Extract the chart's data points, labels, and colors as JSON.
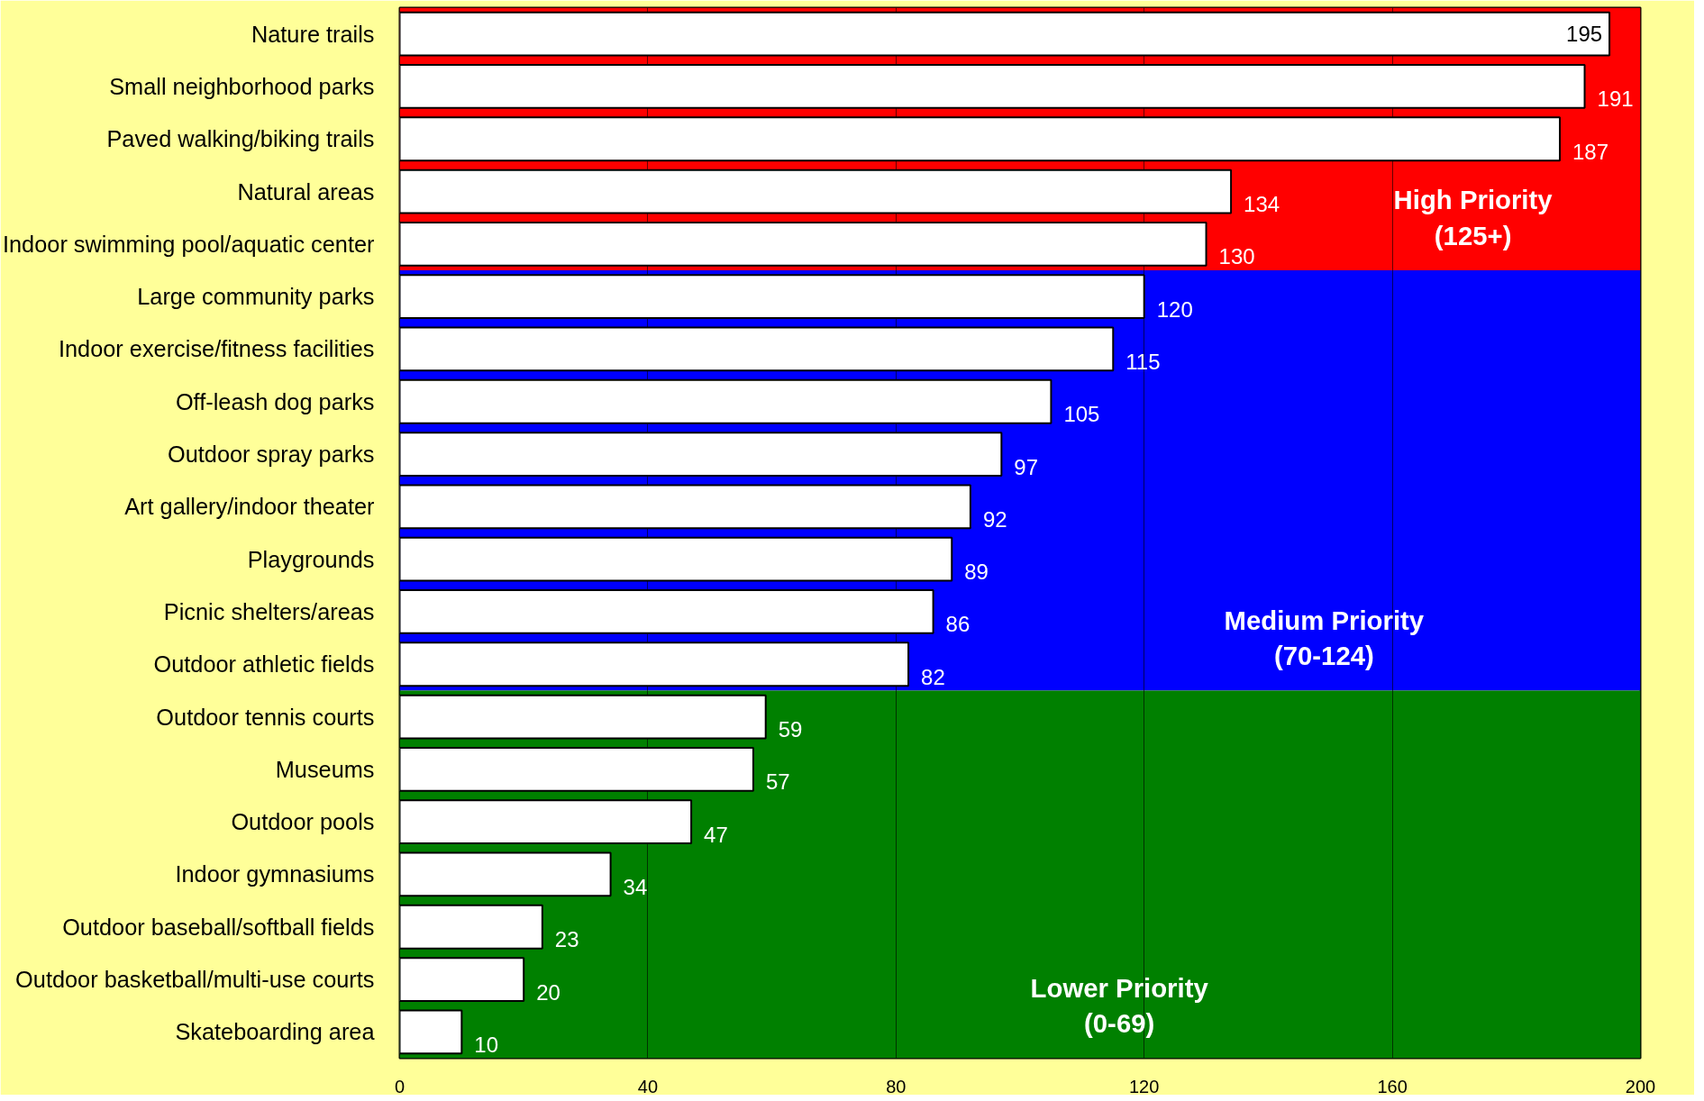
{
  "chart_data": {
    "type": "bar",
    "orientation": "horizontal",
    "categories": [
      "Nature trails",
      "Small neighborhood parks",
      "Paved walking/biking trails",
      "Natural areas",
      "Indoor swimming pool/aquatic center",
      "Large community parks",
      "Indoor exercise/fitness facilities",
      "Off-leash dog parks",
      "Outdoor spray parks",
      "Art gallery/indoor theater",
      "Playgrounds",
      "Picnic shelters/areas",
      "Outdoor athletic fields",
      "Outdoor tennis courts",
      "Museums",
      "Outdoor pools",
      "Indoor gymnasiums",
      "Outdoor baseball/softball fields",
      "Outdoor basketball/multi-use courts",
      "Skateboarding area"
    ],
    "values": [
      195,
      191,
      187,
      134,
      130,
      120,
      115,
      105,
      97,
      92,
      89,
      86,
      82,
      59,
      57,
      47,
      34,
      23,
      20,
      10
    ],
    "color": "#ffffff",
    "xlim": [
      0,
      200
    ],
    "xticks": [
      0,
      40,
      80,
      120,
      160,
      200
    ],
    "grid": "x",
    "data_labels": true,
    "bands": [
      {
        "axis": "y",
        "from": "Nature trails",
        "to": "Indoor swimming pool/aquatic center",
        "label": "High Priority\n(125+)",
        "color": "#ff0000"
      },
      {
        "axis": "y",
        "from": "Large community parks",
        "to": "Outdoor athletic fields",
        "label": "Medium Priority\n(70-124)",
        "color": "#0000ff"
      },
      {
        "axis": "y",
        "from": "Outdoor tennis courts",
        "to": "Skateboarding area",
        "label": "Lower Priority\n(0-69)",
        "color": "#008000"
      }
    ]
  }
}
